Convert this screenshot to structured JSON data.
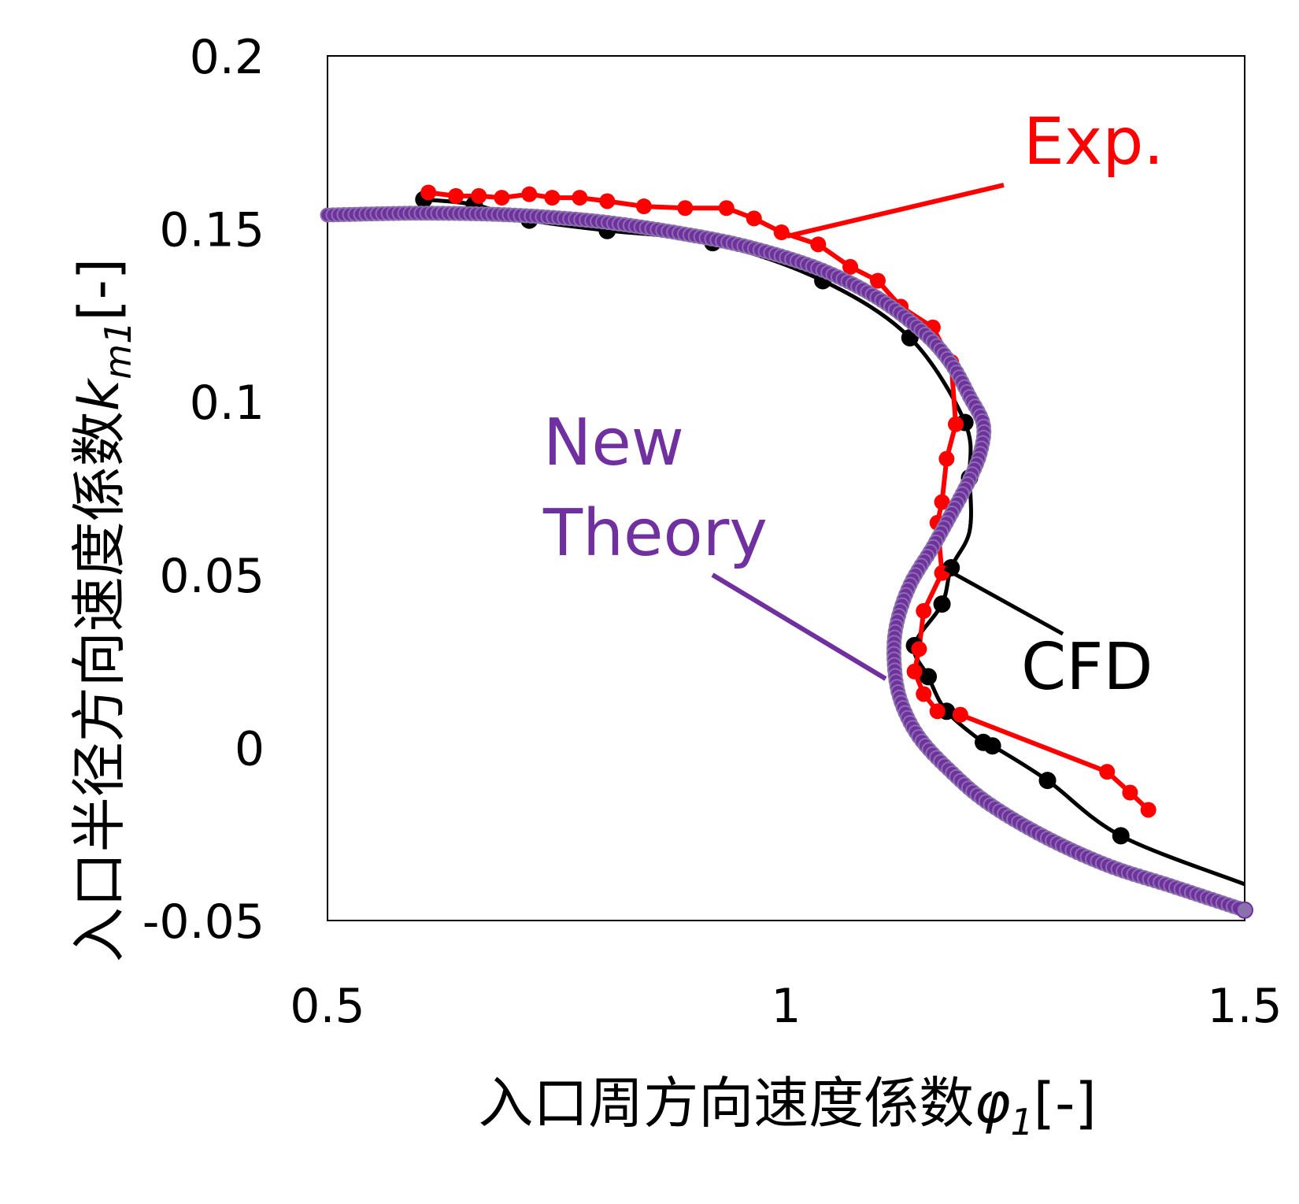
{
  "chart_data": {
    "type": "line",
    "xlabel": "入口周方向速度係数φ1[-]",
    "xlabel_base": "入口周方向速度係数",
    "xlabel_sym": "φ",
    "xlabel_sub": "1",
    "xlabel_unit": "[-]",
    "ylabel": "入口半径方向速度係数km1[-]",
    "ylabel_base": "入口半径方向速度係数",
    "ylabel_sym": "k",
    "ylabel_sub": "m1",
    "ylabel_unit": "[-]",
    "xlim": [
      0.5,
      1.5
    ],
    "ylim": [
      -0.05,
      0.2
    ],
    "x_ticks": [
      "0.5",
      "1",
      "1.5"
    ],
    "y_ticks": [
      "0.2",
      "0.15",
      "0.1",
      "0.05",
      "0",
      "-0.05"
    ],
    "grid": false,
    "series": [
      {
        "name": "CFD",
        "color": "#000000",
        "x": [
          0.605,
          0.66,
          0.72,
          0.805,
          0.92,
          1.04,
          1.135,
          1.195,
          1.2,
          1.2,
          1.18,
          1.17,
          1.14,
          1.155,
          1.175,
          1.215,
          1.225,
          1.285,
          1.365,
          1.5
        ],
        "y": [
          0.1585,
          0.157,
          0.1525,
          0.1495,
          0.146,
          0.135,
          0.1185,
          0.094,
          0.078,
          0.0625,
          0.052,
          0.0415,
          0.0295,
          0.0205,
          0.0105,
          0.0015,
          0.0005,
          -0.0095,
          -0.0255,
          -0.0395
        ],
        "markers": [
          0.605,
          0.66,
          0.72,
          0.805,
          0.92,
          1.04,
          1.135,
          1.195,
          1.2,
          1.18,
          1.17,
          1.14,
          1.155,
          1.175,
          1.215,
          1.225,
          1.285,
          1.365
        ]
      },
      {
        "name": "Exp.",
        "color": "#ff0000",
        "x": [
          0.61,
          0.64,
          0.665,
          0.69,
          0.72,
          0.745,
          0.775,
          0.805,
          0.845,
          0.89,
          0.935,
          0.965,
          0.995,
          1.035,
          1.07,
          1.1,
          1.125,
          1.16,
          1.18,
          1.185,
          1.175,
          1.17,
          1.165,
          1.17,
          1.15,
          1.145,
          1.14,
          1.15,
          1.165,
          1.19,
          1.35,
          1.375,
          1.395
        ],
        "y": [
          0.1605,
          0.1595,
          0.1595,
          0.159,
          0.16,
          0.159,
          0.159,
          0.158,
          0.1565,
          0.156,
          0.156,
          0.153,
          0.149,
          0.1455,
          0.139,
          0.135,
          0.1275,
          0.1215,
          0.1115,
          0.0935,
          0.0835,
          0.071,
          0.065,
          0.0505,
          0.0395,
          0.0285,
          0.022,
          0.0155,
          0.0105,
          0.0095,
          -0.007,
          -0.013,
          -0.018
        ]
      },
      {
        "name": "New Theory",
        "color": "#7030a0",
        "x": [
          0.5,
          0.6,
          0.7,
          0.8,
          0.9,
          0.97,
          1.04,
          1.1,
          1.15,
          1.18,
          1.2,
          1.215,
          1.212,
          1.2,
          1.18,
          1.16,
          1.135,
          1.12,
          1.118,
          1.125,
          1.145,
          1.18,
          1.22,
          1.28,
          1.35,
          1.42,
          1.5
        ],
        "y": [
          0.154,
          0.1545,
          0.154,
          0.152,
          0.148,
          0.144,
          0.138,
          0.13,
          0.12,
          0.111,
          0.1015,
          0.0935,
          0.0855,
          0.0775,
          0.0675,
          0.058,
          0.047,
          0.035,
          0.024,
          0.0135,
          0.003,
          -0.007,
          -0.016,
          -0.0255,
          -0.034,
          -0.04,
          -0.047
        ]
      }
    ],
    "annotations": {
      "exp": "Exp.",
      "cfd": "CFD",
      "new_line1": "New",
      "new_line2": "Theory"
    }
  }
}
